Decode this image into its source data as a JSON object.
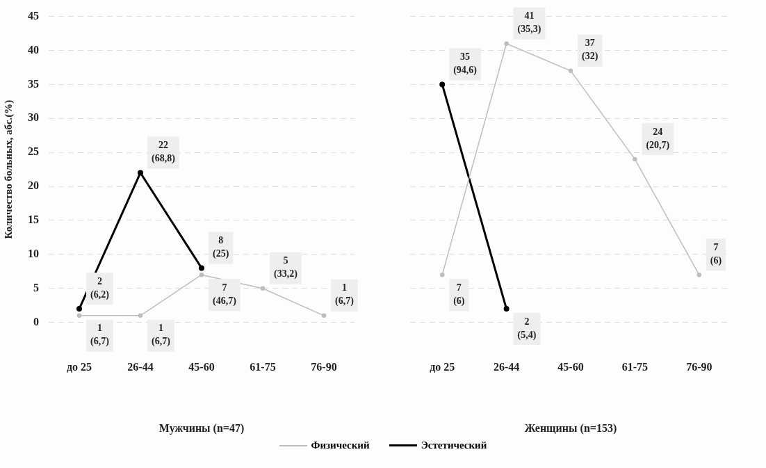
{
  "chart_data": [
    {
      "type": "line",
      "ylabel": "Количество больных, абс.(%)",
      "xlabel": "Мужчины (n=47)",
      "categories": [
        "до 25",
        "26-44",
        "45-60",
        "61-75",
        "76-90"
      ],
      "series": [
        {
          "name": "Физический",
          "color": "#bdbdbd",
          "values": [
            1,
            1,
            7,
            5,
            1
          ],
          "value_labels": [
            "1\n(6,7)",
            "1\n(6,7)",
            "7\n(46,7)",
            "5\n(33,2)",
            "1\n(6,7)"
          ]
        },
        {
          "name": "Эстетический",
          "color": "#000000",
          "values": [
            2,
            22,
            8,
            null,
            null
          ],
          "value_labels": [
            "2\n(6,2)",
            "22\n(68,8)",
            "8\n(25)",
            null,
            null
          ]
        }
      ],
      "ylim": [
        0,
        45
      ],
      "yticks": [
        0,
        5,
        10,
        15,
        20,
        25,
        30,
        35,
        40,
        45
      ],
      "grid": "y",
      "marker": "circle",
      "legend": "bottom"
    },
    {
      "type": "line",
      "xlabel": "Женщины (n=153)",
      "categories": [
        "до 25",
        "26-44",
        "45-60",
        "61-75",
        "76-90"
      ],
      "series": [
        {
          "name": "Физический",
          "color": "#bdbdbd",
          "values": [
            7,
            41,
            37,
            24,
            7
          ],
          "value_labels": [
            "7\n(6)",
            "41\n(35,3)",
            "37\n(32)",
            "24\n(20,7)",
            "7\n(6)"
          ]
        },
        {
          "name": "Эстетический",
          "color": "#000000",
          "values": [
            35,
            2,
            null,
            null,
            null
          ],
          "value_labels": [
            "35\n(94,6)",
            "2\n(5,4)",
            null,
            null,
            null
          ]
        }
      ],
      "ylim": [
        0,
        45
      ],
      "yticks": [
        0,
        5,
        10,
        15,
        20,
        25,
        30,
        35,
        40,
        45
      ],
      "grid": "y",
      "marker": "circle",
      "legend": "bottom",
      "tick_labels": "x"
    }
  ]
}
